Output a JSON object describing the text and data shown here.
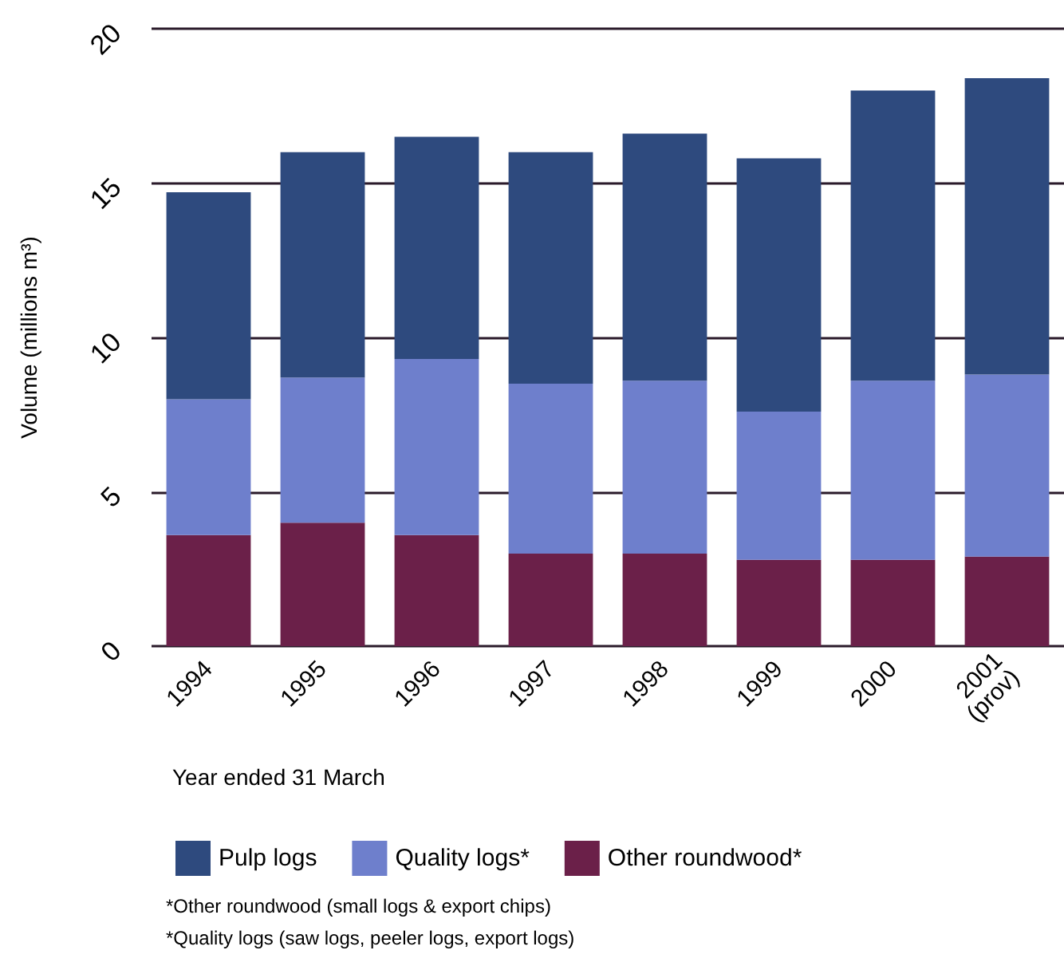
{
  "chart_data": {
    "type": "bar",
    "stacked": true,
    "xlabel": "Year ended 31 March",
    "ylabel": "Volume (millions m³)",
    "categories": [
      "1994",
      "1995",
      "1996",
      "1997",
      "1998",
      "1999",
      "2000",
      "2001 (prov)"
    ],
    "series": [
      {
        "name": "Other roundwood*",
        "color": "#6b2049",
        "values": [
          3.6,
          4.0,
          3.6,
          3.0,
          3.0,
          2.8,
          2.8,
          2.9
        ]
      },
      {
        "name": "Quality logs*",
        "color": "#6e7fcc",
        "values": [
          4.4,
          4.7,
          5.7,
          5.5,
          5.6,
          4.8,
          5.8,
          5.9
        ]
      },
      {
        "name": "Pulp logs",
        "color": "#2e4a7e",
        "values": [
          6.7,
          7.3,
          7.2,
          7.5,
          8.0,
          8.2,
          9.4,
          9.6
        ]
      }
    ],
    "ylim": [
      0,
      20
    ],
    "yticks": [
      0,
      5,
      10,
      15,
      20
    ],
    "grid": "y",
    "legend": "bottom",
    "annotations": [
      "*Other roundwood (small logs & export chips)",
      "*Quality logs (saw logs, peeler logs, export logs)"
    ]
  }
}
